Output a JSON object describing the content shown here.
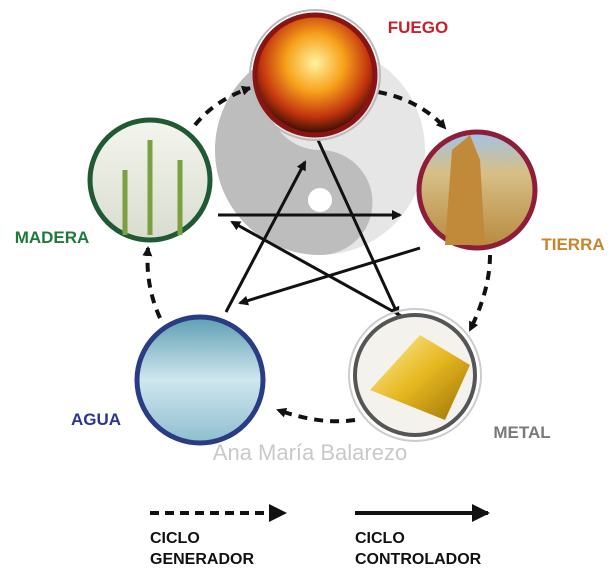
{
  "nodes": [
    {
      "label": "FUEGO"
    },
    {
      "label": "TIERRA"
    },
    {
      "label": "METAL"
    },
    {
      "label": "AGUA"
    },
    {
      "label": "MADERA"
    }
  ],
  "watermark": "Ana María Balarezo",
  "legend": [
    {
      "line1": "CICLO",
      "line2": "GENERADOR"
    },
    {
      "line1": "CICLO",
      "line2": "CONTROLADOR"
    }
  ]
}
